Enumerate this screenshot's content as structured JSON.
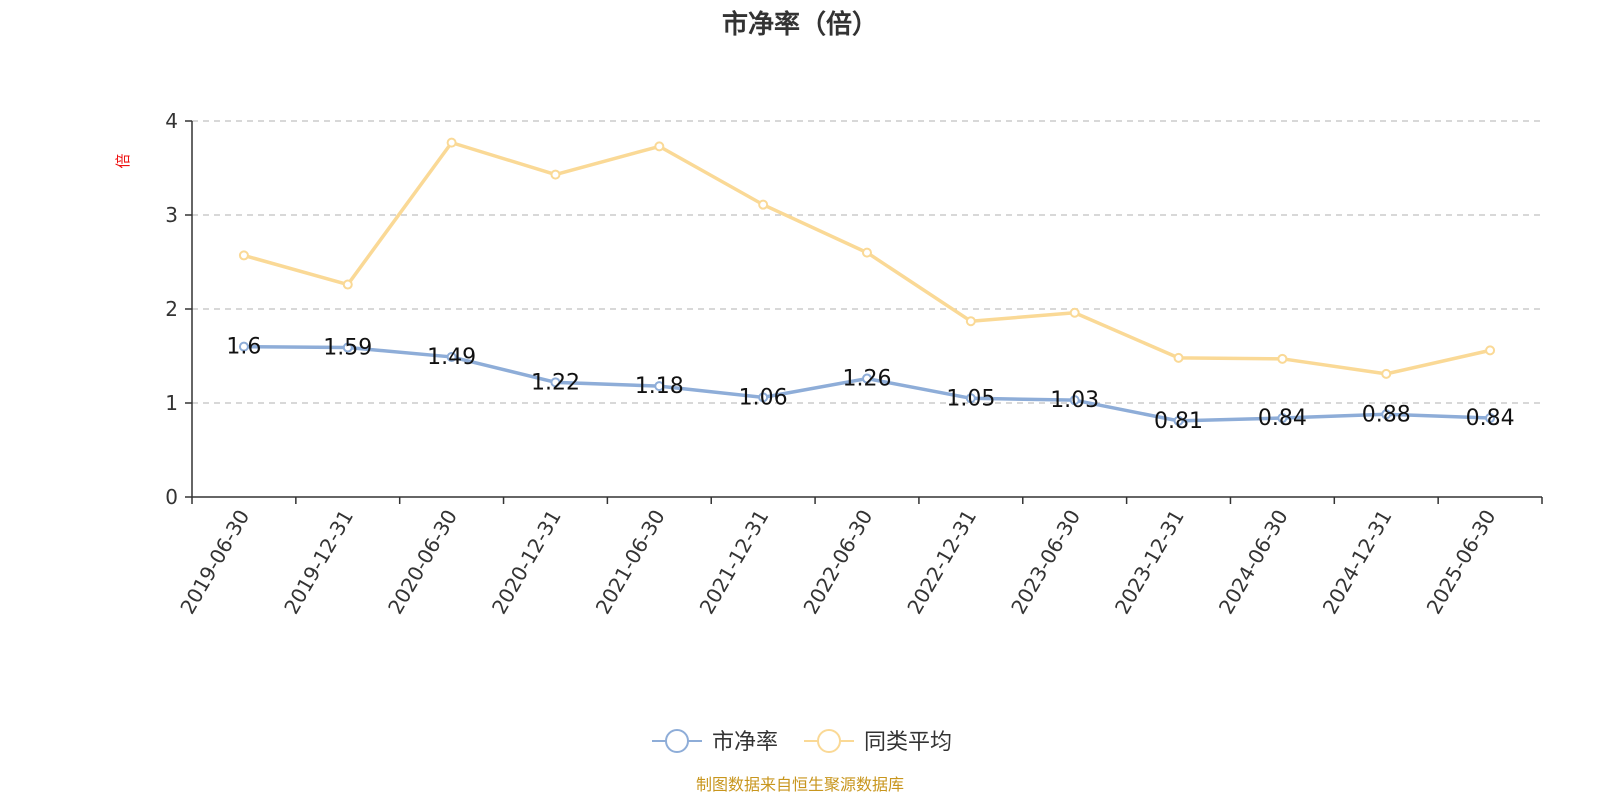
{
  "chart_data": {
    "type": "line",
    "title": "市净率（倍）",
    "ylabel": "倍",
    "xlabel": "",
    "ylim": [
      0,
      4
    ],
    "yticks": [
      0,
      1,
      2,
      3,
      4
    ],
    "grid": true,
    "legend_position": "bottom",
    "categories": [
      "2019-06-30",
      "2019-12-31",
      "2020-06-30",
      "2020-12-31",
      "2021-06-30",
      "2021-12-31",
      "2022-06-30",
      "2022-12-31",
      "2023-06-30",
      "2023-12-31",
      "2024-06-30",
      "2024-12-31",
      "2025-06-30"
    ],
    "series": [
      {
        "name": "市净率",
        "color": "#8eadd8",
        "show_labels": true,
        "values": [
          1.6,
          1.59,
          1.49,
          1.22,
          1.18,
          1.06,
          1.26,
          1.05,
          1.03,
          0.81,
          0.84,
          0.88,
          0.84
        ]
      },
      {
        "name": "同类平均",
        "color": "#fad996",
        "show_labels": false,
        "values": [
          2.57,
          2.26,
          3.77,
          3.43,
          3.73,
          3.11,
          2.6,
          1.87,
          1.96,
          1.48,
          1.47,
          1.31,
          1.56
        ]
      }
    ]
  },
  "footer": {
    "source": "制图数据来自恒生聚源数据库"
  }
}
